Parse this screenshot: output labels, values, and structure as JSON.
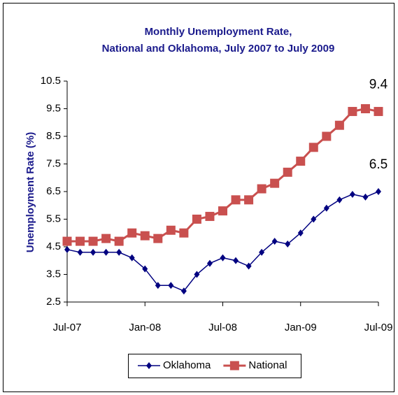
{
  "chart_data": {
    "type": "line",
    "title": [
      "Monthly Unemployment Rate,",
      "National and Oklahoma, July 2007 to July 2009"
    ],
    "y_label": "Unemployment Rate (%)",
    "categories": [
      "Jul-07",
      null,
      null,
      null,
      null,
      null,
      "Jan-08",
      null,
      null,
      null,
      null,
      null,
      "Jul-08",
      null,
      null,
      null,
      null,
      null,
      "Jan-09",
      null,
      null,
      null,
      null,
      null,
      "Jul-09"
    ],
    "series": [
      {
        "name": "Oklahoma",
        "color": "#000080",
        "marker": "diamond",
        "values": [
          4.4,
          4.3,
          4.3,
          4.3,
          4.3,
          4.1,
          3.7,
          3.1,
          3.1,
          2.9,
          3.5,
          3.9,
          4.1,
          4.0,
          3.8,
          4.3,
          4.7,
          4.6,
          5.0,
          5.5,
          5.9,
          6.2,
          6.4,
          6.3,
          6.5
        ]
      },
      {
        "name": "National",
        "color": "#c9504f",
        "marker": "square",
        "values": [
          4.7,
          4.7,
          4.7,
          4.8,
          4.7,
          5.0,
          4.9,
          4.8,
          5.1,
          5.0,
          5.5,
          5.6,
          5.8,
          6.2,
          6.2,
          6.6,
          6.8,
          7.2,
          7.6,
          8.1,
          8.5,
          8.9,
          9.4,
          9.5,
          9.4
        ]
      }
    ],
    "ylim": [
      2.5,
      10.5
    ],
    "yticks": [
      2.5,
      3.5,
      4.5,
      5.5,
      6.5,
      7.5,
      8.5,
      9.5,
      10.5
    ],
    "legend": "bottom"
  }
}
